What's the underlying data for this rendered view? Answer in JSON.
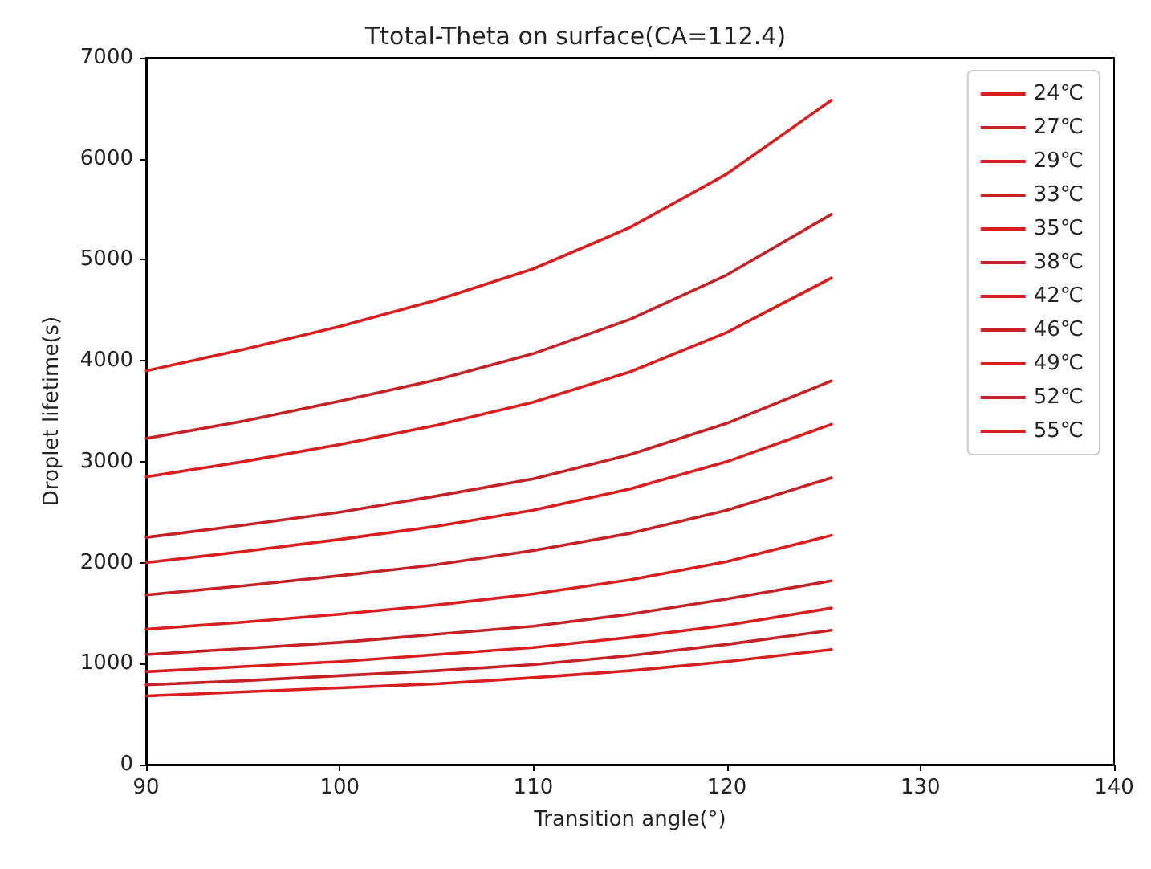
{
  "chart_data": {
    "type": "line",
    "title": "Ttotal-Theta on surface(CA=112.4)",
    "xlabel": "Transition angle(°)",
    "ylabel": "Droplet lifetime(s)",
    "x": [
      90,
      95,
      100,
      105,
      110,
      115,
      120,
      125.4
    ],
    "series": [
      {
        "name": "24℃",
        "color": "#d81e1e",
        "values": [
          3900,
          4110,
          4340,
          4600,
          4910,
          5320,
          5850,
          6580
        ]
      },
      {
        "name": "27℃",
        "color": "#c42226",
        "values": [
          3230,
          3400,
          3600,
          3810,
          4070,
          4410,
          4850,
          5450
        ]
      },
      {
        "name": "29℃",
        "color": "#d81e1e",
        "values": [
          2850,
          3000,
          3170,
          3360,
          3590,
          3890,
          4280,
          4820
        ]
      },
      {
        "name": "33℃",
        "color": "#c42226",
        "values": [
          2250,
          2370,
          2500,
          2660,
          2830,
          3070,
          3380,
          3800
        ]
      },
      {
        "name": "35℃",
        "color": "#d81e1e",
        "values": [
          2000,
          2110,
          2230,
          2360,
          2520,
          2730,
          3000,
          3370
        ]
      },
      {
        "name": "38℃",
        "color": "#c42226",
        "values": [
          1680,
          1770,
          1870,
          1980,
          2120,
          2290,
          2520,
          2840
        ]
      },
      {
        "name": "42℃",
        "color": "#d81e1e",
        "values": [
          1340,
          1410,
          1490,
          1580,
          1690,
          1830,
          2010,
          2270
        ]
      },
      {
        "name": "46℃",
        "color": "#c42226",
        "values": [
          1090,
          1150,
          1210,
          1290,
          1370,
          1490,
          1640,
          1820
        ]
      },
      {
        "name": "49℃",
        "color": "#d81e1e",
        "values": [
          920,
          970,
          1020,
          1090,
          1160,
          1260,
          1380,
          1550
        ]
      },
      {
        "name": "52℃",
        "color": "#c42226",
        "values": [
          790,
          830,
          880,
          930,
          990,
          1080,
          1190,
          1330
        ]
      },
      {
        "name": "55℃",
        "color": "#d81e1e",
        "values": [
          680,
          720,
          760,
          800,
          860,
          930,
          1020,
          1140
        ]
      }
    ],
    "xlim": [
      90,
      140
    ],
    "xticks": [
      90,
      100,
      110,
      120,
      130,
      140
    ],
    "ylim": [
      0,
      7000
    ],
    "yticks": [
      0,
      1000,
      2000,
      3000,
      4000,
      5000,
      6000,
      7000
    ],
    "grid": false,
    "legend": "top right",
    "marker": "none",
    "line_style": "solid"
  }
}
